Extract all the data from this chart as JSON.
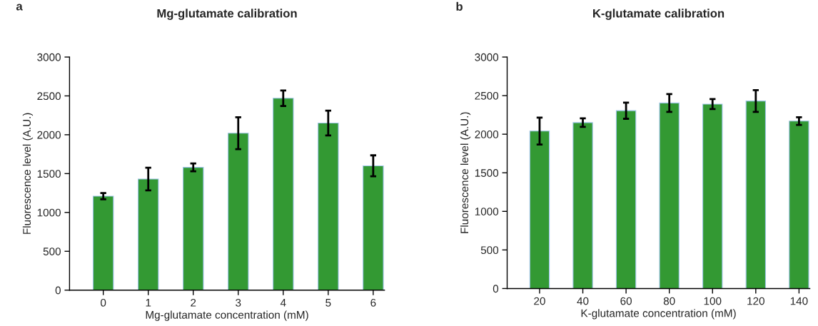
{
  "chart_data": [
    {
      "type": "bar",
      "title": "Mg-glutamate calibration",
      "xlabel": "Mg-glutamate concentration (mM)",
      "ylabel": "Fluorescence level (A.U.)",
      "annotations": [
        "a"
      ],
      "categories": [
        "0",
        "1",
        "2",
        "3",
        "4",
        "5",
        "6"
      ],
      "values": [
        1210,
        1430,
        1580,
        2020,
        2470,
        2150,
        1600
      ],
      "errors": [
        40,
        145,
        50,
        205,
        100,
        160,
        135
      ],
      "color": "#339933",
      "ylim": [
        0,
        3000
      ],
      "yticks": [
        0,
        500,
        1000,
        1500,
        2000,
        2500,
        3000
      ],
      "grid": false,
      "legend": false
    },
    {
      "type": "bar",
      "title": "K-glutamate calibration",
      "xlabel": "K-glutamate concentration (mM)",
      "ylabel": "Fluorescence level (A.U.)",
      "annotations": [
        "b"
      ],
      "categories": [
        "20",
        "40",
        "60",
        "80",
        "100",
        "120",
        "140"
      ],
      "values": [
        2040,
        2150,
        2305,
        2405,
        2390,
        2430,
        2170
      ],
      "errors": [
        175,
        55,
        105,
        115,
        65,
        140,
        50
      ],
      "color": "#339933",
      "ylim": [
        0,
        3000
      ],
      "yticks": [
        0,
        500,
        1000,
        1500,
        2000,
        2500,
        3000
      ],
      "grid": false,
      "legend": false
    }
  ]
}
